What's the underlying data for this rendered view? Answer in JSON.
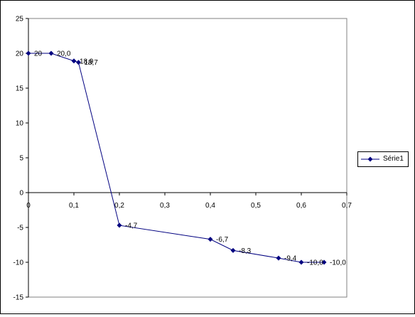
{
  "chart_data": {
    "type": "line",
    "x": [
      0,
      0.05,
      0.1,
      0.11,
      0.2,
      0.4,
      0.45,
      0.55,
      0.6,
      0.65
    ],
    "series": [
      {
        "name": "Série1",
        "values": [
          20,
          20.0,
          18.9,
          18.7,
          -4.7,
          -6.7,
          -8.3,
          -9.4,
          -10.0,
          -10.0
        ],
        "data_labels": [
          "20",
          "20,0",
          "18,9",
          "18,7",
          "-4,7",
          "-6,7",
          "-8,3",
          "-9,4",
          "-10,0",
          "-10,0"
        ]
      }
    ],
    "xlim": [
      0,
      0.7
    ],
    "ylim": [
      -15,
      25
    ],
    "x_ticks": [
      0,
      0.1,
      0.2,
      0.3,
      0.4,
      0.5,
      0.6,
      0.7
    ],
    "x_tick_labels": [
      "0",
      "0,1",
      "0,2",
      "0,3",
      "0,4",
      "0,5",
      "0,6",
      "0,7"
    ],
    "y_ticks": [
      -15,
      -10,
      -5,
      0,
      5,
      10,
      15,
      20,
      25
    ],
    "y_tick_labels": [
      "-15",
      "-10",
      "-5",
      "0",
      "5",
      "10",
      "15",
      "20",
      "25"
    ],
    "grid": false,
    "legend": "right",
    "line_color": "#000080",
    "marker": "diamond"
  }
}
